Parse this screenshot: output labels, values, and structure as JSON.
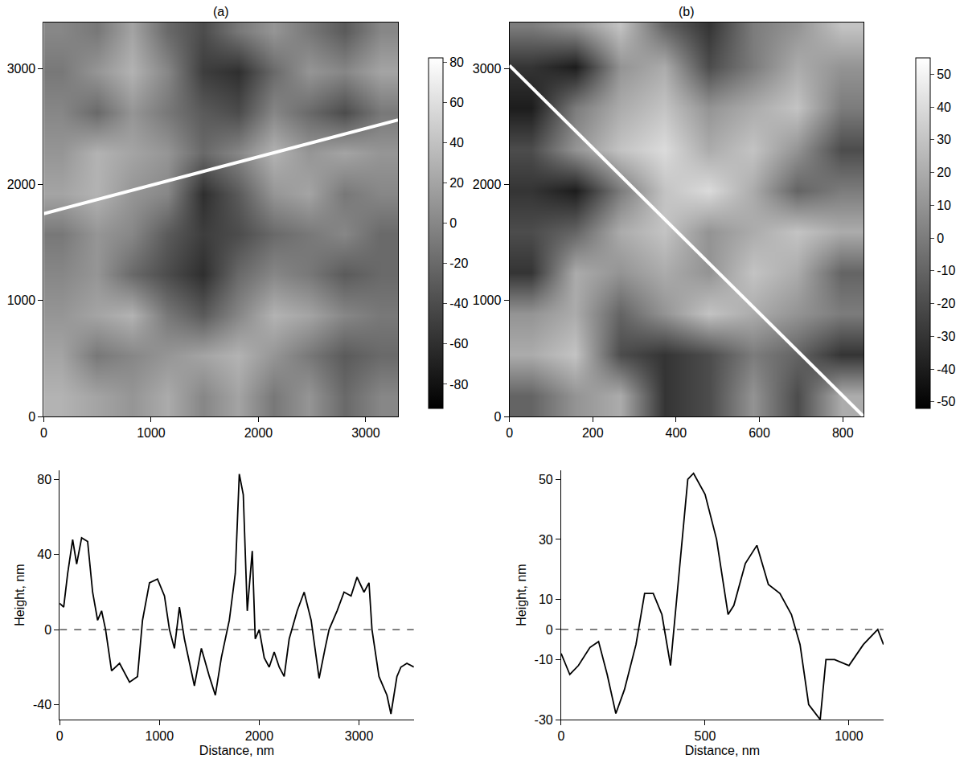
{
  "chart_data": [
    {
      "type": "heatmap",
      "title": "(a)",
      "x": [
        165,
        495,
        825,
        1155,
        1485,
        1815,
        2145,
        2475,
        2805,
        3135
      ],
      "y": [
        175,
        525,
        875,
        1225,
        1575,
        1925,
        2275,
        2625,
        2975,
        3325
      ],
      "z": [
        [
          30,
          20,
          10,
          25,
          0,
          20,
          -10,
          10,
          -20,
          0
        ],
        [
          20,
          -10,
          0,
          10,
          20,
          30,
          10,
          -10,
          -30,
          -20
        ],
        [
          10,
          20,
          30,
          -10,
          -30,
          0,
          30,
          20,
          0,
          -10
        ],
        [
          0,
          10,
          -20,
          -40,
          -60,
          -20,
          0,
          -10,
          -30,
          -20
        ],
        [
          -10,
          10,
          0,
          -30,
          -50,
          -40,
          -20,
          -10,
          0,
          -20
        ],
        [
          20,
          30,
          10,
          0,
          -60,
          -30,
          10,
          20,
          -10,
          0
        ],
        [
          10,
          30,
          20,
          10,
          -20,
          0,
          30,
          10,
          20,
          10
        ],
        [
          0,
          -20,
          10,
          -10,
          -30,
          -40,
          0,
          -20,
          -40,
          -10
        ],
        [
          -10,
          10,
          30,
          0,
          -50,
          -60,
          -20,
          10,
          0,
          20
        ],
        [
          0,
          -10,
          20,
          -20,
          -40,
          -10,
          10,
          -10,
          -30,
          0
        ]
      ],
      "xlim": [
        0,
        3300
      ],
      "ylim": [
        0,
        3400
      ],
      "xticks": [
        0,
        1000,
        2000,
        3000
      ],
      "yticks": [
        0,
        1000,
        2000,
        3000
      ],
      "zlim": [
        -92,
        82
      ],
      "zticks": [
        -80,
        -60,
        -40,
        -20,
        0,
        20,
        40,
        60,
        80
      ],
      "profile_line": {
        "x": [
          0,
          3300
        ],
        "y": [
          1750,
          2560
        ]
      }
    },
    {
      "type": "heatmap",
      "title": "(b)",
      "x": [
        53,
        159,
        266,
        372,
        478,
        584,
        691,
        797
      ],
      "y": [
        177,
        532,
        887,
        1242,
        1597,
        1952,
        2307,
        2662,
        3017,
        3372
      ],
      "z": [
        [
          -10,
          10,
          20,
          -30,
          -20,
          10,
          -20,
          20
        ],
        [
          20,
          30,
          -20,
          -30,
          -20,
          0,
          -10,
          -30
        ],
        [
          10,
          20,
          -10,
          10,
          30,
          20,
          10,
          0
        ],
        [
          -30,
          20,
          10,
          20,
          10,
          30,
          20,
          -10
        ],
        [
          -20,
          -10,
          20,
          30,
          10,
          20,
          30,
          20
        ],
        [
          -30,
          -40,
          0,
          30,
          40,
          20,
          -10,
          0
        ],
        [
          -20,
          10,
          30,
          40,
          20,
          30,
          10,
          -20
        ],
        [
          -40,
          0,
          20,
          30,
          10,
          20,
          30,
          0
        ],
        [
          -30,
          -40,
          10,
          20,
          -20,
          0,
          20,
          10
        ],
        [
          0,
          10,
          30,
          -10,
          -30,
          0,
          10,
          30
        ]
      ],
      "xlim": [
        0,
        850
      ],
      "ylim": [
        0,
        3400
      ],
      "xticks": [
        0,
        200,
        400,
        600,
        800
      ],
      "yticks": [
        0,
        1000,
        2000,
        3000
      ],
      "zlim": [
        -52,
        55
      ],
      "zticks": [
        -50,
        -40,
        -30,
        -20,
        -10,
        0,
        10,
        20,
        30,
        40,
        50
      ],
      "profile_line": {
        "x": [
          0,
          850
        ],
        "y": [
          3030,
          0
        ]
      }
    },
    {
      "type": "line",
      "xlabel": "Distance, nm",
      "ylabel": "Height, nm",
      "color": "#000000",
      "x": [
        0,
        40,
        80,
        130,
        170,
        220,
        280,
        330,
        380,
        420,
        460,
        520,
        600,
        700,
        780,
        830,
        900,
        980,
        1050,
        1100,
        1150,
        1200,
        1250,
        1300,
        1350,
        1420,
        1500,
        1560,
        1620,
        1700,
        1760,
        1800,
        1840,
        1880,
        1930,
        1960,
        2000,
        2050,
        2100,
        2150,
        2200,
        2250,
        2300,
        2380,
        2450,
        2520,
        2600,
        2660,
        2700,
        2780,
        2850,
        2920,
        2980,
        3050,
        3100,
        3130,
        3200,
        3280,
        3320,
        3380,
        3420,
        3480,
        3550
      ],
      "values": [
        14,
        12,
        30,
        48,
        35,
        49,
        47,
        20,
        5,
        10,
        0,
        -22,
        -18,
        -28,
        -25,
        5,
        25,
        27,
        18,
        0,
        -10,
        12,
        -5,
        -18,
        -30,
        -10,
        -25,
        -35,
        -15,
        5,
        30,
        83,
        72,
        10,
        42,
        -5,
        0,
        -15,
        -20,
        -12,
        -20,
        -25,
        -5,
        10,
        20,
        5,
        -26,
        -10,
        0,
        10,
        20,
        18,
        28,
        20,
        25,
        0,
        -25,
        -35,
        -45,
        -25,
        -20,
        -18,
        -20
      ],
      "xlim": [
        0,
        3550
      ],
      "ylim": [
        -48,
        85
      ],
      "xticks": [
        0,
        1000,
        2000,
        3000
      ],
      "yticks": [
        -40,
        0,
        40,
        80
      ],
      "dashed_line_y": 0
    },
    {
      "type": "line",
      "xlabel": "Distance, nm",
      "ylabel": "Height, nm",
      "color": "#000000",
      "x": [
        0,
        30,
        60,
        100,
        130,
        160,
        190,
        220,
        260,
        290,
        320,
        350,
        380,
        410,
        440,
        460,
        500,
        540,
        580,
        600,
        640,
        680,
        720,
        760,
        800,
        830,
        860,
        900,
        920,
        950,
        1000,
        1050,
        1080,
        1100,
        1120
      ],
      "values": [
        -8,
        -15,
        -12,
        -6,
        -4,
        -15,
        -28,
        -20,
        -5,
        12,
        12,
        5,
        -12,
        20,
        50,
        52,
        45,
        30,
        5,
        8,
        22,
        28,
        15,
        12,
        5,
        -5,
        -25,
        -30,
        -10,
        -10,
        -12,
        -5,
        -2,
        0,
        -5
      ],
      "xlim": [
        0,
        1120
      ],
      "ylim": [
        -30,
        53
      ],
      "xticks": [
        0,
        500,
        1000
      ],
      "yticks": [
        -30,
        -10,
        0,
        10,
        30,
        50
      ],
      "dashed_line_y": 0
    }
  ]
}
